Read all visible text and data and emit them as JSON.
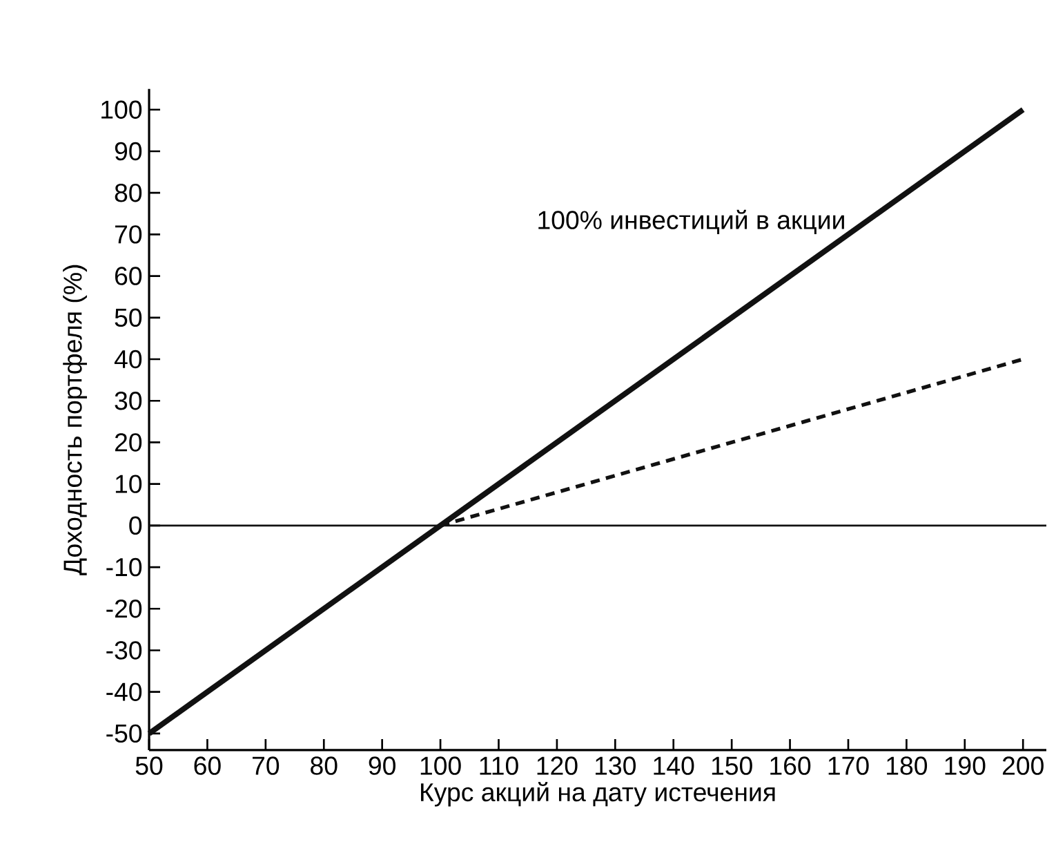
{
  "chart_data": {
    "type": "line",
    "xlabel": "Курс акций на дату истечения",
    "ylabel": "Доходность портфеля (%)",
    "xlim": [
      50,
      204
    ],
    "ylim": [
      -54,
      105
    ],
    "xticks": [
      50,
      60,
      70,
      80,
      90,
      100,
      110,
      120,
      130,
      140,
      150,
      160,
      170,
      180,
      190,
      200
    ],
    "yticks": [
      -50,
      -40,
      -30,
      -20,
      -10,
      0,
      10,
      20,
      30,
      40,
      50,
      60,
      70,
      80,
      90,
      100
    ],
    "series": [
      {
        "name": "100% инвестиций в акции",
        "color": "#111111",
        "line_style": "solid",
        "x": [
          50,
          200
        ],
        "values": [
          -50,
          100
        ]
      },
      {
        "color": "#111111",
        "line_style": "dashed",
        "x": [
          100,
          200
        ],
        "values": [
          0,
          40
        ]
      }
    ],
    "ref_lines": [
      {
        "axis": "y",
        "value": 0,
        "color": "#111111"
      }
    ],
    "grid": false,
    "legend": false,
    "marker": "none"
  }
}
